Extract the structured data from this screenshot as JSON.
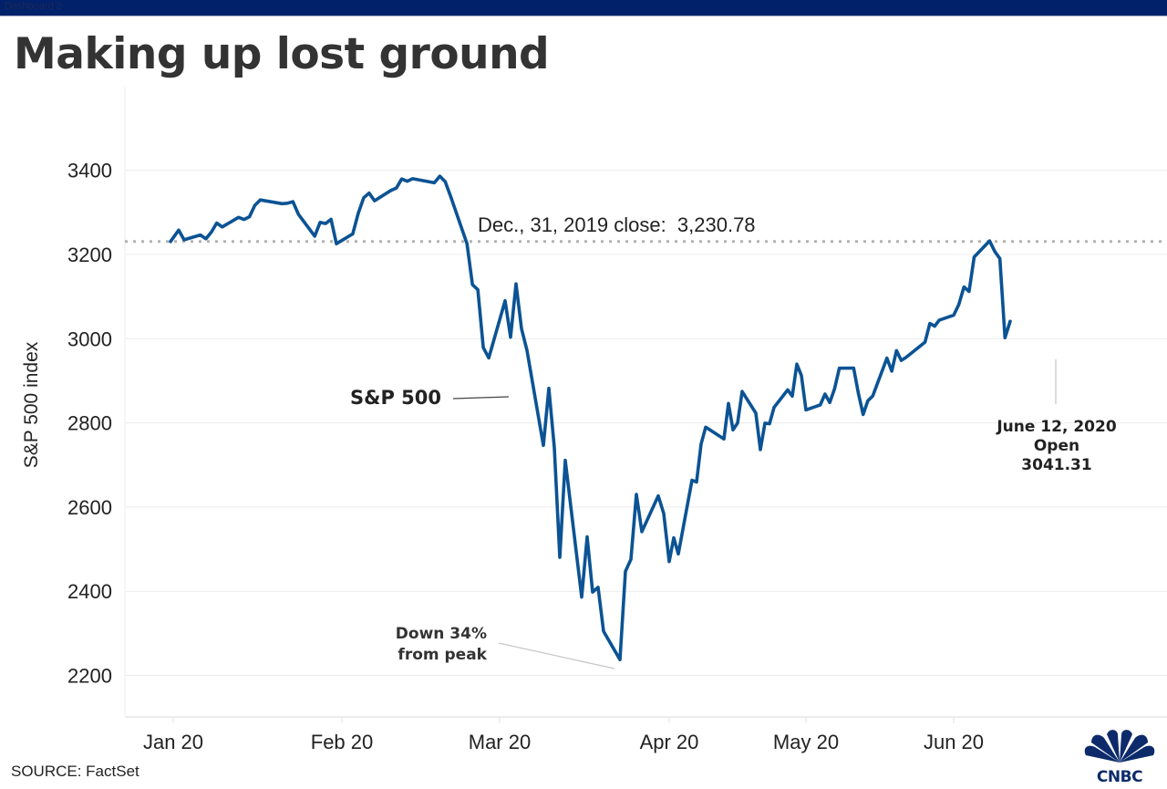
{
  "window": {
    "tab_label": "Dashboard 2"
  },
  "title": "Making up lost ground",
  "source": "SOURCE: FactSet",
  "logo_text": "CNBC",
  "colors": {
    "line": "#0b5394",
    "topbar": "#02216b",
    "grid": "#ececec",
    "ref_line": "#b3b3b3",
    "logo": "#0d2b6b"
  },
  "chart_data": {
    "type": "line",
    "title": "Making up lost ground",
    "xlabel": "",
    "ylabel": "S&P 500 index",
    "ylim": [
      2080,
      3620
    ],
    "yticks": [
      2200,
      2400,
      2600,
      2800,
      3000,
      3200,
      3400
    ],
    "xticks": [
      {
        "date": "2020-01-01",
        "label": "Jan 20"
      },
      {
        "date": "2020-02-01",
        "label": "Feb 20"
      },
      {
        "date": "2020-03-01",
        "label": "Mar 20"
      },
      {
        "date": "2020-04-01",
        "label": "Apr 20"
      },
      {
        "date": "2020-05-01",
        "label": "May 20"
      },
      {
        "date": "2020-06-01",
        "label": "Jun 20"
      }
    ],
    "grid": true,
    "legend": "none",
    "reference_line": {
      "value": 3230.78,
      "label": "Dec., 31, 2019 close:  3,230.78"
    },
    "annotations": [
      {
        "text": "S&P 500",
        "target_date": "2020-03-03",
        "target_value": 2890
      },
      {
        "text_lines": [
          "Down 34%",
          "from peak"
        ],
        "target_date": "2020-03-23",
        "target_value": 2237
      },
      {
        "text_lines": [
          "June 12, 2020",
          "Open",
          "3041.31"
        ],
        "target_date": "2020-06-11",
        "target_value": 3002
      }
    ],
    "series": [
      {
        "name": "S&P 500",
        "points": [
          [
            "2020-01-02",
            3257.85
          ],
          [
            "2020-01-03",
            3234.85
          ],
          [
            "2020-01-06",
            3246.28
          ],
          [
            "2020-01-07",
            3237.18
          ],
          [
            "2020-01-08",
            3253.05
          ],
          [
            "2020-01-09",
            3274.7
          ],
          [
            "2020-01-10",
            3265.35
          ],
          [
            "2020-01-13",
            3288.13
          ],
          [
            "2020-01-14",
            3283.15
          ],
          [
            "2020-01-15",
            3289.29
          ],
          [
            "2020-01-16",
            3316.81
          ],
          [
            "2020-01-17",
            3329.62
          ],
          [
            "2020-01-21",
            3320.79
          ],
          [
            "2020-01-22",
            3321.75
          ],
          [
            "2020-01-23",
            3325.54
          ],
          [
            "2020-01-24",
            3295.47
          ],
          [
            "2020-01-27",
            3243.63
          ],
          [
            "2020-01-28",
            3276.24
          ],
          [
            "2020-01-29",
            3273.4
          ],
          [
            "2020-01-30",
            3283.66
          ],
          [
            "2020-01-31",
            3225.52
          ],
          [
            "2020-02-03",
            3248.92
          ],
          [
            "2020-02-04",
            3297.59
          ],
          [
            "2020-02-05",
            3334.69
          ],
          [
            "2020-02-06",
            3345.78
          ],
          [
            "2020-02-07",
            3327.71
          ],
          [
            "2020-02-10",
            3352.09
          ],
          [
            "2020-02-11",
            3357.75
          ],
          [
            "2020-02-12",
            3379.45
          ],
          [
            "2020-02-13",
            3373.94
          ],
          [
            "2020-02-14",
            3380.16
          ],
          [
            "2020-02-18",
            3370.29
          ],
          [
            "2020-02-19",
            3386.15
          ],
          [
            "2020-02-20",
            3373.23
          ],
          [
            "2020-02-21",
            3337.75
          ],
          [
            "2020-02-24",
            3225.89
          ],
          [
            "2020-02-25",
            3128.21
          ],
          [
            "2020-02-26",
            3116.39
          ],
          [
            "2020-02-27",
            2978.76
          ],
          [
            "2020-02-28",
            2954.22
          ],
          [
            "2020-03-02",
            3090.23
          ],
          [
            "2020-03-03",
            3003.37
          ],
          [
            "2020-03-04",
            3130.12
          ],
          [
            "2020-03-05",
            3023.94
          ],
          [
            "2020-03-06",
            2972.37
          ],
          [
            "2020-03-09",
            2746.56
          ],
          [
            "2020-03-10",
            2882.23
          ],
          [
            "2020-03-11",
            2741.38
          ],
          [
            "2020-03-12",
            2480.64
          ],
          [
            "2020-03-13",
            2711.02
          ],
          [
            "2020-03-16",
            2386.13
          ],
          [
            "2020-03-17",
            2529.19
          ],
          [
            "2020-03-18",
            2398.1
          ],
          [
            "2020-03-19",
            2409.39
          ],
          [
            "2020-03-20",
            2304.92
          ],
          [
            "2020-03-23",
            2237.4
          ],
          [
            "2020-03-24",
            2447.33
          ],
          [
            "2020-03-25",
            2475.56
          ],
          [
            "2020-03-26",
            2630.07
          ],
          [
            "2020-03-27",
            2541.47
          ],
          [
            "2020-03-30",
            2626.65
          ],
          [
            "2020-03-31",
            2584.59
          ],
          [
            "2020-04-01",
            2470.5
          ],
          [
            "2020-04-02",
            2526.9
          ],
          [
            "2020-04-03",
            2488.65
          ],
          [
            "2020-04-06",
            2663.68
          ],
          [
            "2020-04-07",
            2659.41
          ],
          [
            "2020-04-08",
            2749.98
          ],
          [
            "2020-04-09",
            2789.82
          ],
          [
            "2020-04-13",
            2761.63
          ],
          [
            "2020-04-14",
            2846.06
          ],
          [
            "2020-04-15",
            2783.36
          ],
          [
            "2020-04-16",
            2799.55
          ],
          [
            "2020-04-17",
            2874.56
          ],
          [
            "2020-04-20",
            2823.16
          ],
          [
            "2020-04-21",
            2736.56
          ],
          [
            "2020-04-22",
            2799.31
          ],
          [
            "2020-04-23",
            2797.8
          ],
          [
            "2020-04-24",
            2836.74
          ],
          [
            "2020-04-27",
            2878.48
          ],
          [
            "2020-04-28",
            2863.39
          ],
          [
            "2020-04-29",
            2939.51
          ],
          [
            "2020-04-30",
            2912.43
          ],
          [
            "2020-05-01",
            2830.71
          ],
          [
            "2020-05-04",
            2842.74
          ],
          [
            "2020-05-05",
            2868.44
          ],
          [
            "2020-05-06",
            2848.42
          ],
          [
            "2020-05-07",
            2881.19
          ],
          [
            "2020-05-08",
            2929.8
          ],
          [
            "2020-05-11",
            2930.32
          ],
          [
            "2020-05-12",
            2870.12
          ],
          [
            "2020-05-13",
            2820.0
          ],
          [
            "2020-05-14",
            2852.5
          ],
          [
            "2020-05-15",
            2863.7
          ],
          [
            "2020-05-18",
            2953.91
          ],
          [
            "2020-05-19",
            2922.94
          ],
          [
            "2020-05-20",
            2971.61
          ],
          [
            "2020-05-21",
            2948.51
          ],
          [
            "2020-05-22",
            2955.45
          ],
          [
            "2020-05-26",
            2991.77
          ],
          [
            "2020-05-27",
            3036.13
          ],
          [
            "2020-05-28",
            3029.73
          ],
          [
            "2020-05-29",
            3044.31
          ],
          [
            "2020-06-01",
            3055.73
          ],
          [
            "2020-06-02",
            3080.82
          ],
          [
            "2020-06-03",
            3122.87
          ],
          [
            "2020-06-04",
            3112.35
          ],
          [
            "2020-06-05",
            3193.93
          ],
          [
            "2020-06-08",
            3232.39
          ],
          [
            "2020-06-09",
            3207.18
          ],
          [
            "2020-06-10",
            3190.14
          ],
          [
            "2020-06-11",
            3002.1
          ],
          [
            "2020-06-12",
            3041.31
          ]
        ]
      }
    ]
  }
}
